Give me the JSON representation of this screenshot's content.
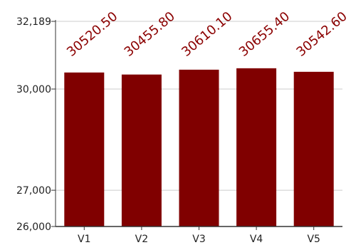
{
  "chart_data": {
    "type": "bar",
    "categories": [
      "V1",
      "V2",
      "V3",
      "V4",
      "V5"
    ],
    "values": [
      30520.5,
      30455.8,
      30610.1,
      30655.4,
      30542.6
    ],
    "data_labels": [
      "30520.50",
      "30455.80",
      "30610.10",
      "30655.40",
      "30542.60"
    ],
    "y_tick_labels": [
      "26,000",
      "27,000",
      "30,000",
      "32,189"
    ],
    "y_ticks": [
      26000,
      27000,
      30000,
      32189
    ],
    "ylim": [
      26000,
      32189
    ],
    "y_scale": "log",
    "title": "",
    "xlabel": "",
    "ylabel": "",
    "grid": true,
    "legend": "none",
    "colors": {
      "bar": "#800000",
      "label": "#8b0000",
      "grid": "#cccccc",
      "axis": "#333333"
    }
  }
}
